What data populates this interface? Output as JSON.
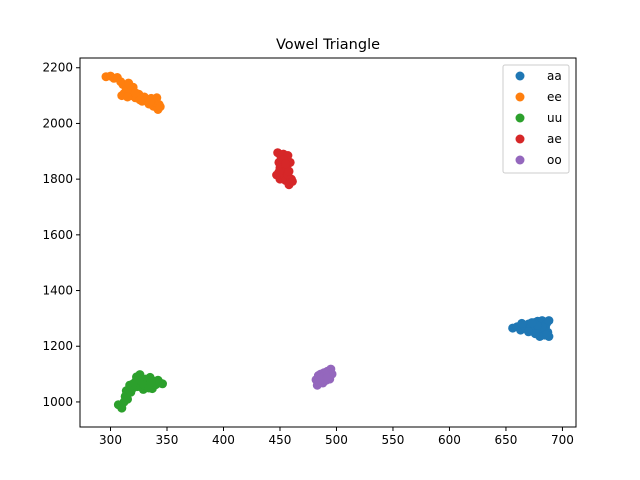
{
  "chart_data": {
    "type": "scatter",
    "title": "Vowel Triangle",
    "xlabel": "",
    "ylabel": "",
    "xlim": [
      273,
      712
    ],
    "ylim": [
      910,
      2235
    ],
    "xticks": [
      300,
      350,
      400,
      450,
      500,
      550,
      600,
      650,
      700
    ],
    "yticks": [
      1000,
      1200,
      1400,
      1600,
      1800,
      2000,
      2200
    ],
    "grid": false,
    "legend_position": "top-right",
    "series": [
      {
        "name": "aa",
        "color": "#1f77b4",
        "points": [
          [
            656,
            1265
          ],
          [
            660,
            1270
          ],
          [
            663,
            1258
          ],
          [
            666,
            1275
          ],
          [
            668,
            1262
          ],
          [
            670,
            1280
          ],
          [
            672,
            1268
          ],
          [
            674,
            1255
          ],
          [
            675,
            1285
          ],
          [
            676,
            1272
          ],
          [
            678,
            1290
          ],
          [
            679,
            1262
          ],
          [
            680,
            1248
          ],
          [
            681,
            1278
          ],
          [
            682,
            1292
          ],
          [
            683,
            1255
          ],
          [
            684,
            1240
          ],
          [
            685,
            1268
          ],
          [
            686,
            1282
          ],
          [
            687,
            1250
          ],
          [
            688,
            1235
          ],
          [
            680,
            1235
          ],
          [
            676,
            1245
          ],
          [
            670,
            1252
          ],
          [
            664,
            1282
          ],
          [
            688,
            1292
          ],
          [
            686,
            1240
          ],
          [
            682,
            1270
          ],
          [
            678,
            1275
          ],
          [
            673,
            1285
          ]
        ]
      },
      {
        "name": "ee",
        "color": "#ff7f0e",
        "points": [
          [
            296,
            2168
          ],
          [
            300,
            2170
          ],
          [
            303,
            2162
          ],
          [
            306,
            2165
          ],
          [
            309,
            2150
          ],
          [
            311,
            2140
          ],
          [
            312,
            2108
          ],
          [
            314,
            2120
          ],
          [
            316,
            2145
          ],
          [
            318,
            2100
          ],
          [
            320,
            2130
          ],
          [
            322,
            2092
          ],
          [
            325,
            2105
          ],
          [
            328,
            2080
          ],
          [
            330,
            2095
          ],
          [
            332,
            2082
          ],
          [
            334,
            2070
          ],
          [
            336,
            2090
          ],
          [
            338,
            2062
          ],
          [
            340,
            2075
          ],
          [
            341,
            2092
          ],
          [
            342,
            2050
          ],
          [
            343,
            2068
          ],
          [
            344,
            2060
          ],
          [
            326,
            2085
          ],
          [
            318,
            2115
          ],
          [
            310,
            2100
          ],
          [
            335,
            2078
          ],
          [
            315,
            2095
          ],
          [
            322,
            2110
          ]
        ]
      },
      {
        "name": "uu",
        "color": "#2ca02c",
        "points": [
          [
            307,
            990
          ],
          [
            310,
            978
          ],
          [
            312,
            1000
          ],
          [
            313,
            1020
          ],
          [
            314,
            1040
          ],
          [
            315,
            1010
          ],
          [
            317,
            1060
          ],
          [
            318,
            1035
          ],
          [
            320,
            1050
          ],
          [
            322,
            1072
          ],
          [
            323,
            1090
          ],
          [
            324,
            1055
          ],
          [
            326,
            1098
          ],
          [
            328,
            1070
          ],
          [
            329,
            1045
          ],
          [
            331,
            1082
          ],
          [
            333,
            1060
          ],
          [
            335,
            1088
          ],
          [
            337,
            1048
          ],
          [
            338,
            1075
          ],
          [
            340,
            1062
          ],
          [
            342,
            1078
          ],
          [
            344,
            1068
          ],
          [
            346,
            1065
          ],
          [
            330,
            1060
          ],
          [
            325,
            1080
          ],
          [
            334,
            1050
          ],
          [
            320,
            1065
          ],
          [
            316,
            1045
          ],
          [
            336,
            1072
          ]
        ]
      },
      {
        "name": "ae",
        "color": "#d62728",
        "points": [
          [
            447,
            1815
          ],
          [
            448,
            1895
          ],
          [
            449,
            1860
          ],
          [
            450,
            1840
          ],
          [
            450,
            1800
          ],
          [
            451,
            1878
          ],
          [
            452,
            1820
          ],
          [
            452,
            1850
          ],
          [
            453,
            1890
          ],
          [
            454,
            1805
          ],
          [
            454,
            1865
          ],
          [
            455,
            1835
          ],
          [
            455,
            1795
          ],
          [
            456,
            1875
          ],
          [
            456,
            1845
          ],
          [
            457,
            1815
          ],
          [
            457,
            1885
          ],
          [
            458,
            1780
          ],
          [
            458,
            1828
          ],
          [
            459,
            1860
          ],
          [
            460,
            1800
          ],
          [
            461,
            1792
          ],
          [
            449,
            1825
          ],
          [
            453,
            1870
          ],
          [
            455,
            1855
          ]
        ]
      },
      {
        "name": "oo",
        "color": "#9467bd",
        "points": [
          [
            482,
            1080
          ],
          [
            483,
            1060
          ],
          [
            484,
            1095
          ],
          [
            485,
            1072
          ],
          [
            486,
            1100
          ],
          [
            487,
            1085
          ],
          [
            488,
            1068
          ],
          [
            489,
            1105
          ],
          [
            490,
            1090
          ],
          [
            491,
            1078
          ],
          [
            492,
            1110
          ],
          [
            493,
            1095
          ],
          [
            494,
            1082
          ],
          [
            495,
            1118
          ],
          [
            496,
            1100
          ],
          [
            486,
            1078
          ],
          [
            490,
            1100
          ],
          [
            488,
            1090
          ],
          [
            492,
            1088
          ],
          [
            484,
            1088
          ]
        ]
      }
    ]
  }
}
